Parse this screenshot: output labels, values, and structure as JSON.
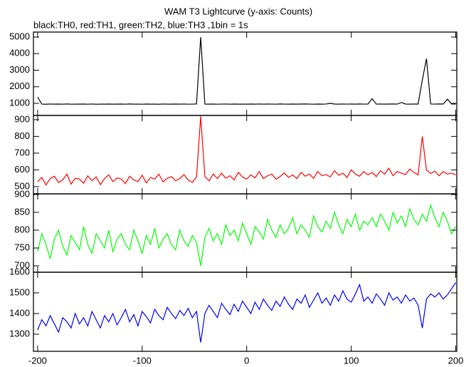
{
  "chart_data": [
    {
      "type": "line",
      "title": "WAM T3 Lightcurve (y-axis: Counts)",
      "subtitle": "black:TH0, red:TH1, green:TH2, blue:TH3 ,1bin = 1s",
      "color": "#000000",
      "xlim": [
        -204,
        201
      ],
      "xticks": [
        -200,
        -100,
        0,
        100,
        200
      ],
      "ylim": [
        270,
        5300
      ],
      "yticks": [
        1000,
        2000,
        3000,
        4000,
        5000
      ],
      "x": [
        -200,
        -196,
        -192,
        -188,
        -184,
        -180,
        -176,
        -172,
        -168,
        -164,
        -160,
        -156,
        -152,
        -148,
        -144,
        -140,
        -136,
        -132,
        -128,
        -124,
        -120,
        -116,
        -112,
        -108,
        -104,
        -100,
        -96,
        -92,
        -88,
        -84,
        -80,
        -76,
        -72,
        -68,
        -64,
        -60,
        -56,
        -52,
        -48,
        -44,
        -40,
        -36,
        -32,
        -28,
        -24,
        -20,
        -16,
        -12,
        -8,
        -4,
        0,
        4,
        8,
        12,
        16,
        20,
        24,
        28,
        32,
        36,
        40,
        44,
        48,
        52,
        56,
        60,
        64,
        68,
        72,
        76,
        80,
        84,
        88,
        92,
        96,
        100,
        104,
        108,
        112,
        116,
        120,
        124,
        128,
        132,
        136,
        140,
        144,
        148,
        152,
        156,
        160,
        164,
        168,
        172,
        176,
        180,
        184,
        188,
        192,
        196,
        200
      ],
      "values": [
        1380,
        955,
        948,
        960,
        952,
        957,
        950,
        962,
        949,
        955,
        953,
        958,
        950,
        961,
        947,
        956,
        952,
        959,
        951,
        954,
        957,
        949,
        962,
        953,
        955,
        950,
        958,
        952,
        956,
        948,
        960,
        954,
        951,
        957,
        953,
        959,
        950,
        955,
        962,
        5000,
        956,
        952,
        958,
        950,
        955,
        961,
        949,
        957,
        953,
        956,
        951,
        958,
        954,
        960,
        952,
        957,
        955,
        950,
        963,
        956,
        953,
        959,
        951,
        957,
        962,
        955,
        950,
        958,
        954,
        961,
        1000,
        957,
        953,
        960,
        955,
        958,
        952,
        962,
        956,
        959,
        1280,
        955,
        960,
        953,
        958,
        962,
        956,
        1050,
        959,
        954,
        961,
        957,
        2400,
        3700,
        960,
        955,
        962,
        958,
        1250,
        960,
        957
      ]
    },
    {
      "type": "line",
      "color": "#ff0000",
      "xlim": [
        -204,
        201
      ],
      "xticks": [
        -200,
        -100,
        0,
        100,
        200
      ],
      "ylim": [
        457,
        925
      ],
      "yticks": [
        500,
        600,
        700,
        800,
        900
      ],
      "x": [
        -200,
        -196,
        -192,
        -188,
        -184,
        -180,
        -176,
        -172,
        -168,
        -164,
        -160,
        -156,
        -152,
        -148,
        -144,
        -140,
        -136,
        -132,
        -128,
        -124,
        -120,
        -116,
        -112,
        -108,
        -104,
        -100,
        -96,
        -92,
        -88,
        -84,
        -80,
        -76,
        -72,
        -68,
        -64,
        -60,
        -56,
        -52,
        -48,
        -44,
        -40,
        -36,
        -32,
        -28,
        -24,
        -20,
        -16,
        -12,
        -8,
        -4,
        0,
        4,
        8,
        12,
        16,
        20,
        24,
        28,
        32,
        36,
        40,
        44,
        48,
        52,
        56,
        60,
        64,
        68,
        72,
        76,
        80,
        84,
        88,
        92,
        96,
        100,
        104,
        108,
        112,
        116,
        120,
        124,
        128,
        132,
        136,
        140,
        144,
        148,
        152,
        156,
        160,
        164,
        168,
        172,
        176,
        180,
        184,
        188,
        192,
        196,
        200
      ],
      "values": [
        530,
        555,
        510,
        548,
        562,
        525,
        540,
        575,
        515,
        550,
        545,
        520,
        565,
        535,
        558,
        512,
        548,
        570,
        530,
        552,
        545,
        518,
        562,
        540,
        530,
        568,
        522,
        555,
        545,
        575,
        528,
        550,
        560,
        535,
        548,
        572,
        540,
        525,
        558,
        920,
        560,
        535,
        575,
        548,
        580,
        550,
        565,
        540,
        585,
        558,
        545,
        570,
        552,
        590,
        548,
        565,
        575,
        545,
        560,
        582,
        555,
        570,
        548,
        585,
        562,
        575,
        550,
        590,
        565,
        572,
        558,
        595,
        568,
        580,
        555,
        600,
        575,
        562,
        590,
        570,
        585,
        560,
        595,
        575,
        610,
        565,
        590,
        580,
        572,
        605,
        585,
        570,
        800,
        600,
        578,
        592,
        565,
        590,
        575,
        580,
        570
      ]
    },
    {
      "type": "line",
      "color": "#00ff00",
      "xlim": [
        -204,
        201
      ],
      "xticks": [
        -200,
        -100,
        0,
        100,
        200
      ],
      "ylim": [
        682,
        902
      ],
      "yticks": [
        700,
        750,
        800,
        850,
        900
      ],
      "x": [
        -200,
        -196,
        -192,
        -188,
        -184,
        -180,
        -176,
        -172,
        -168,
        -164,
        -160,
        -156,
        -152,
        -148,
        -144,
        -140,
        -136,
        -132,
        -128,
        -124,
        -120,
        -116,
        -112,
        -108,
        -104,
        -100,
        -96,
        -92,
        -88,
        -84,
        -80,
        -76,
        -72,
        -68,
        -64,
        -60,
        -56,
        -52,
        -48,
        -44,
        -40,
        -36,
        -32,
        -28,
        -24,
        -20,
        -16,
        -12,
        -8,
        -4,
        0,
        4,
        8,
        12,
        16,
        20,
        24,
        28,
        32,
        36,
        40,
        44,
        48,
        52,
        56,
        60,
        64,
        68,
        72,
        76,
        80,
        84,
        88,
        92,
        96,
        100,
        104,
        108,
        112,
        116,
        120,
        124,
        128,
        132,
        136,
        140,
        144,
        148,
        152,
        156,
        160,
        164,
        168,
        172,
        176,
        180,
        184,
        188,
        192,
        196,
        200
      ],
      "values": [
        740,
        790,
        760,
        720,
        775,
        800,
        755,
        730,
        785,
        765,
        745,
        810,
        760,
        735,
        790,
        770,
        750,
        800,
        740,
        775,
        790,
        760,
        745,
        800,
        770,
        735,
        785,
        760,
        805,
        750,
        775,
        790,
        760,
        745,
        800,
        770,
        755,
        785,
        765,
        700,
        780,
        805,
        770,
        790,
        760,
        815,
        785,
        800,
        770,
        820,
        790,
        760,
        810,
        795,
        775,
        830,
        800,
        780,
        815,
        790,
        805,
        835,
        790,
        815,
        800,
        780,
        840,
        810,
        795,
        825,
        805,
        850,
        815,
        790,
        830,
        810,
        845,
        800,
        825,
        815,
        835,
        810,
        845,
        825,
        800,
        850,
        820,
        840,
        810,
        860,
        830,
        815,
        845,
        825,
        870,
        835,
        810,
        850,
        825,
        790,
        810
      ]
    },
    {
      "type": "line",
      "color": "#0000ff",
      "xlim": [
        -204,
        201
      ],
      "xticks": [
        -200,
        -100,
        0,
        100,
        200
      ],
      "ylim": [
        1217,
        1600
      ],
      "yticks": [
        1300,
        1400,
        1500,
        1600
      ],
      "x": [
        -200,
        -196,
        -192,
        -188,
        -184,
        -180,
        -176,
        -172,
        -168,
        -164,
        -160,
        -156,
        -152,
        -148,
        -144,
        -140,
        -136,
        -132,
        -128,
        -124,
        -120,
        -116,
        -112,
        -108,
        -104,
        -100,
        -96,
        -92,
        -88,
        -84,
        -80,
        -76,
        -72,
        -68,
        -64,
        -60,
        -56,
        -52,
        -48,
        -44,
        -40,
        -36,
        -32,
        -28,
        -24,
        -20,
        -16,
        -12,
        -8,
        -4,
        0,
        4,
        8,
        12,
        16,
        20,
        24,
        28,
        32,
        36,
        40,
        44,
        48,
        52,
        56,
        60,
        64,
        68,
        72,
        76,
        80,
        84,
        88,
        92,
        96,
        100,
        104,
        108,
        112,
        116,
        120,
        124,
        128,
        132,
        136,
        140,
        144,
        148,
        152,
        156,
        160,
        164,
        168,
        172,
        176,
        180,
        184,
        188,
        192,
        196,
        200
      ],
      "values": [
        1320,
        1370,
        1340,
        1390,
        1350,
        1310,
        1380,
        1360,
        1330,
        1400,
        1350,
        1380,
        1340,
        1410,
        1370,
        1330,
        1390,
        1360,
        1400,
        1345,
        1380,
        1420,
        1360,
        1395,
        1340,
        1410,
        1385,
        1355,
        1420,
        1390,
        1370,
        1430,
        1400,
        1375,
        1415,
        1390,
        1425,
        1380,
        1410,
        1260,
        1400,
        1440,
        1410,
        1380,
        1450,
        1420,
        1395,
        1445,
        1410,
        1460,
        1430,
        1400,
        1455,
        1420,
        1470,
        1440,
        1415,
        1460,
        1435,
        1480,
        1445,
        1420,
        1470,
        1450,
        1490,
        1430,
        1465,
        1500,
        1450,
        1475,
        1440,
        1490,
        1460,
        1510,
        1470,
        1455,
        1495,
        1540,
        1460,
        1480,
        1450,
        1495,
        1470,
        1440,
        1500,
        1465,
        1480,
        1450,
        1490,
        1460,
        1475,
        1440,
        1330,
        1470,
        1495,
        1480,
        1500,
        1470,
        1490,
        1520,
        1550
      ]
    }
  ]
}
